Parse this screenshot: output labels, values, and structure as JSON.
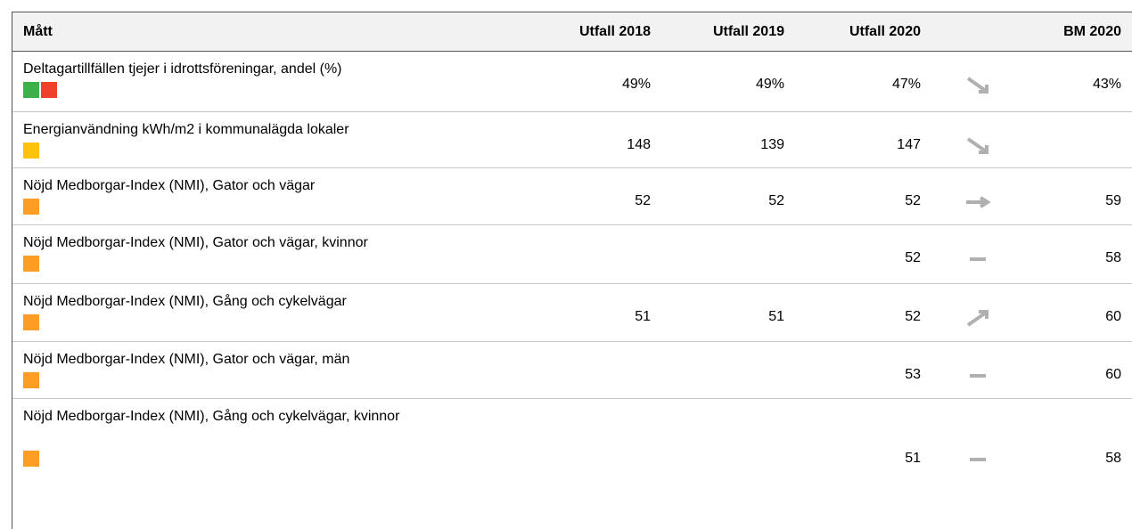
{
  "table": {
    "header": [
      "Mått",
      "Utfall 2018",
      "Utfall 2019",
      "Utfall 2020",
      "BM 2020"
    ],
    "rows": [
      {
        "label": "Deltagartillfällen tjejer i idrottsföreningar, andel (%)",
        "icon_colors": [
          "#3eb049",
          "#ef402b"
        ],
        "values": [
          "49%",
          "49%",
          "47%",
          "43%"
        ],
        "trend": "down"
      },
      {
        "label": "Energianvändning kWh/m2 i kommunalägda lokaler",
        "icon_colors": [
          "#fcc30b"
        ],
        "values": [
          "148",
          "139",
          "147",
          null
        ],
        "trend": "down"
      },
      {
        "label": "Nöjd Medborgar-Index (NMI), Gator och vägar",
        "icon_colors": [
          "#fd9d24"
        ],
        "values": [
          "52",
          "52",
          "52",
          "59"
        ],
        "trend": "right"
      },
      {
        "label": "Nöjd Medborgar-Index (NMI), Gator och vägar, kvinnor",
        "icon_colors": [
          "#fd9d24"
        ],
        "values": [
          null,
          null,
          "52",
          "58"
        ],
        "trend": "flat"
      },
      {
        "label": "Nöjd Medborgar-Index (NMI), Gång och cykelvägar",
        "icon_colors": [
          "#fd9d24"
        ],
        "values": [
          "51",
          "51",
          "52",
          "60"
        ],
        "trend": "up"
      },
      {
        "label": "Nöjd Medborgar-Index (NMI), Gator och vägar, män",
        "icon_colors": [
          "#fd9d24"
        ],
        "values": [
          null,
          null,
          "53",
          "60"
        ],
        "trend": "flat"
      },
      {
        "label": "Nöjd Medborgar-Index (NMI), Gång och cykelvägar, kvinnor",
        "icon_colors": [
          "#fd9d24"
        ],
        "values": [
          null,
          null,
          "51",
          "58"
        ],
        "trend": "flat"
      }
    ]
  }
}
